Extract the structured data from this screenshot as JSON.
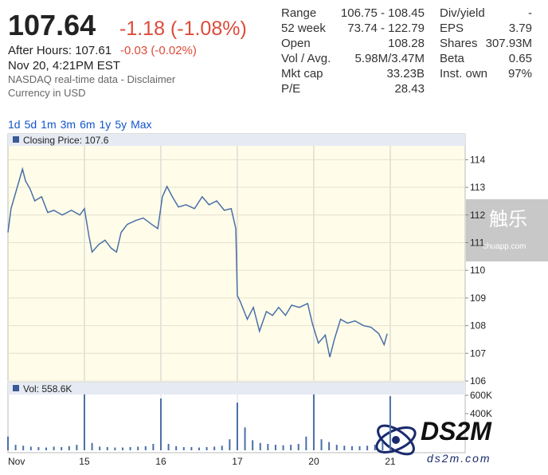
{
  "quote": {
    "price": "107.64",
    "change": "-1.18 (-1.08%)",
    "after_hours_label": "After Hours: 107.61",
    "after_hours_change": "-0.03 (-0.02%)",
    "timestamp": "Nov 20, 4:21PM EST",
    "source": "NASDAQ real-time data - Disclaimer",
    "currency": "Currency in USD"
  },
  "stats": [
    [
      {
        "label": "Range",
        "value": "106.75 - 108.45"
      },
      {
        "label": "52 week",
        "value": "73.74 - 122.79"
      },
      {
        "label": "Open",
        "value": "108.28"
      },
      {
        "label": "Vol / Avg.",
        "value": "5.98M/3.47M"
      },
      {
        "label": "Mkt cap",
        "value": "33.23B"
      },
      {
        "label": "P/E",
        "value": "28.43"
      }
    ],
    [
      {
        "label": "Div/yield",
        "value": "-"
      },
      {
        "label": "EPS",
        "value": "3.79"
      },
      {
        "label": "Shares",
        "value": "307.93M"
      },
      {
        "label": "Beta",
        "value": "0.65"
      },
      {
        "label": "Inst. own",
        "value": "97%"
      }
    ]
  ],
  "ranges": [
    "1d",
    "5d",
    "1m",
    "3m",
    "6m",
    "1y",
    "5y",
    "Max"
  ],
  "chart_data": [
    {
      "type": "line",
      "legend": "Closing Price: 107.6",
      "x": [
        0,
        0.04,
        0.1,
        0.19,
        0.23,
        0.29,
        0.35,
        0.44,
        0.52,
        0.6,
        0.71,
        0.83,
        0.94,
        1.0,
        1.06,
        1.1,
        1.19,
        1.27,
        1.35,
        1.42,
        1.48,
        1.56,
        1.67,
        1.77,
        1.88,
        1.96,
        2.02,
        2.08,
        2.15,
        2.23,
        2.33,
        2.44,
        2.54,
        2.63,
        2.73,
        2.83,
        2.92,
        2.98,
        3.0,
        3.04,
        3.13,
        3.21,
        3.29,
        3.38,
        3.46,
        3.54,
        3.63,
        3.71,
        3.81,
        3.92,
        3.98,
        4.06,
        4.15,
        4.21,
        4.27,
        4.35,
        4.44,
        4.54,
        4.65,
        4.75,
        4.85,
        4.92,
        4.96
      ],
      "series": [
        {
          "color": "#4a6fa8",
          "values": [
            111.37,
            112.23,
            112.8,
            113.66,
            113.23,
            112.94,
            112.51,
            112.66,
            112.09,
            112.17,
            112.0,
            112.17,
            112.0,
            112.23,
            111.23,
            110.66,
            110.94,
            111.09,
            110.8,
            110.66,
            111.37,
            111.66,
            111.8,
            111.89,
            111.66,
            111.51,
            112.66,
            113.03,
            112.66,
            112.29,
            112.37,
            112.23,
            112.66,
            112.37,
            112.51,
            112.17,
            112.23,
            111.51,
            109.09,
            108.86,
            108.23,
            108.66,
            107.8,
            108.51,
            108.37,
            108.66,
            108.37,
            108.74,
            108.66,
            108.8,
            108.09,
            107.37,
            107.66,
            106.86,
            107.51,
            108.23,
            108.09,
            108.17,
            108.0,
            107.94,
            107.71,
            107.31,
            107.71
          ]
        }
      ],
      "xlim": [
        0,
        5.98
      ],
      "ylim": [
        106,
        114.5
      ],
      "yticks": [
        106,
        107,
        108,
        109,
        110,
        111,
        112,
        113,
        114
      ]
    },
    {
      "type": "bar",
      "legend": "Vol: 558.6K",
      "color": "#4a6fa8",
      "x": [
        0,
        0.1,
        0.2,
        0.3,
        0.4,
        0.5,
        0.6,
        0.7,
        0.8,
        0.9,
        1.0,
        1.1,
        1.2,
        1.3,
        1.4,
        1.5,
        1.6,
        1.7,
        1.8,
        1.9,
        2.0,
        2.1,
        2.2,
        2.3,
        2.4,
        2.5,
        2.6,
        2.7,
        2.8,
        2.9,
        3.0,
        3.1,
        3.2,
        3.3,
        3.4,
        3.5,
        3.6,
        3.7,
        3.8,
        3.9,
        4.0,
        4.1,
        4.2,
        4.3,
        4.4,
        4.5,
        4.6,
        4.7,
        4.8,
        4.9,
        5.0
      ],
      "values": [
        150000,
        60000,
        50000,
        40000,
        35000,
        30000,
        40000,
        35000,
        45000,
        60000,
        610000,
        80000,
        40000,
        35000,
        30000,
        30000,
        35000,
        40000,
        45000,
        70000,
        565000,
        70000,
        45000,
        35000,
        35000,
        30000,
        35000,
        40000,
        50000,
        120000,
        520000,
        250000,
        110000,
        80000,
        70000,
        60000,
        55000,
        60000,
        70000,
        150000,
        610000,
        120000,
        90000,
        60000,
        50000,
        45000,
        45000,
        50000,
        60000,
        90000,
        590000
      ],
      "xlim": [
        0,
        5.98
      ],
      "ylim": [
        0,
        700000
      ],
      "yticks": [
        {
          "value": 400000,
          "label": "400K"
        },
        {
          "value": 600000,
          "label": "600K"
        }
      ],
      "xticks": [
        {
          "value": 0,
          "label": "Nov"
        },
        {
          "value": 1,
          "label": "15"
        },
        {
          "value": 2,
          "label": "16"
        },
        {
          "value": 3,
          "label": "17"
        },
        {
          "value": 4,
          "label": "20"
        },
        {
          "value": 5,
          "label": "21"
        }
      ]
    }
  ],
  "watermarks": [
    "触乐",
    "chuapp.com",
    "DS2M",
    "ds2m.com"
  ]
}
